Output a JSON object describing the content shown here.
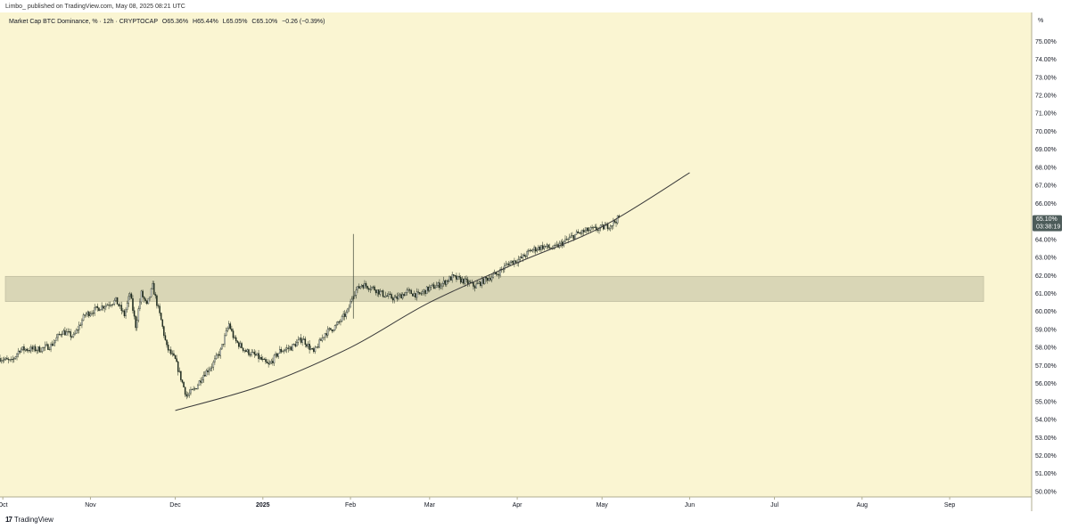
{
  "publisher_line": "Limbo_ published on TradingView.com, May 08, 2025 08:21 UTC",
  "footer": {
    "logo_glyph": "17",
    "brand": "TradingView"
  },
  "colors": {
    "plot_bg": "#faf5d2",
    "zone_fill": "#d9d6b6",
    "zone_stroke": "#b9b69a",
    "candle_up": "#ffffff",
    "candle_down": "#1f2b1f",
    "wick": "#1f2b1f",
    "trendline": "#3b3b3b",
    "last_price_bg": "#4d5c5a",
    "axis_line": "#b0ad90"
  },
  "chart_data": {
    "type": "candlestick",
    "title": "Market Cap BTC Dominance, % · 12h · CRYPTOCAP",
    "ohlc_legend": {
      "open_label": "O",
      "open": "65.36%",
      "high_label": "H",
      "high": "65.44%",
      "low_label": "L",
      "low": "65.05%",
      "close_label": "C",
      "close": "65.10%",
      "change": "−0.26 (−0.39%)"
    },
    "y_axis": {
      "unit_label": "%",
      "min": 49.7,
      "max": 76.6,
      "ticks": [
        "75.00%",
        "74.00%",
        "73.00%",
        "72.00%",
        "71.00%",
        "70.00%",
        "69.00%",
        "68.00%",
        "67.00%",
        "66.00%",
        "64.00%",
        "63.00%",
        "62.00%",
        "61.00%",
        "60.00%",
        "59.00%",
        "58.00%",
        "57.00%",
        "56.00%",
        "55.00%",
        "54.00%",
        "53.00%",
        "52.00%",
        "51.00%",
        "50.00%"
      ],
      "tick_values": [
        75,
        74,
        73,
        72,
        71,
        70,
        69,
        68,
        67,
        66,
        64,
        63,
        62,
        61,
        60,
        59,
        58,
        57,
        56,
        55,
        54,
        53,
        52,
        51,
        50
      ]
    },
    "x_axis": {
      "start": "2024-09-30",
      "end": "2025-09-30",
      "labels": [
        {
          "text": "Oct",
          "date": "2024-10-01"
        },
        {
          "text": "Nov",
          "date": "2024-11-01"
        },
        {
          "text": "Dec",
          "date": "2024-12-01"
        },
        {
          "text": "2025",
          "date": "2025-01-01"
        },
        {
          "text": "Feb",
          "date": "2025-02-01"
        },
        {
          "text": "Mar",
          "date": "2025-03-01"
        },
        {
          "text": "Apr",
          "date": "2025-04-01"
        },
        {
          "text": "May",
          "date": "2025-05-01"
        },
        {
          "text": "Jun",
          "date": "2025-06-01"
        },
        {
          "text": "Jul",
          "date": "2025-07-01"
        },
        {
          "text": "Aug",
          "date": "2025-08-01"
        },
        {
          "text": "Sep",
          "date": "2025-09-01"
        }
      ]
    },
    "last_price": {
      "value": 65.1,
      "label": "65.10%",
      "countdown": "03:38:19"
    },
    "zone": {
      "low": 60.55,
      "high": 61.95,
      "from": "2024-09-30",
      "to": "2025-09-13"
    },
    "trendline": [
      {
        "date": "2024-12-01",
        "value": 54.5
      },
      {
        "date": "2025-01-01",
        "value": 55.9
      },
      {
        "date": "2025-02-01",
        "value": 58.0
      },
      {
        "date": "2025-03-01",
        "value": 60.5
      },
      {
        "date": "2025-04-01",
        "value": 62.7
      },
      {
        "date": "2025-05-01",
        "value": 64.7
      },
      {
        "date": "2025-06-01",
        "value": 67.7
      }
    ],
    "price_path": [
      {
        "date": "2024-09-30",
        "value": 57.4
      },
      {
        "date": "2024-10-04",
        "value": 57.2
      },
      {
        "date": "2024-10-07",
        "value": 57.9
      },
      {
        "date": "2024-10-14",
        "value": 57.9
      },
      {
        "date": "2024-10-18",
        "value": 58.1
      },
      {
        "date": "2024-10-22",
        "value": 58.9
      },
      {
        "date": "2024-10-26",
        "value": 58.6
      },
      {
        "date": "2024-10-30",
        "value": 59.8
      },
      {
        "date": "2024-11-04",
        "value": 60.2
      },
      {
        "date": "2024-11-10",
        "value": 60.6
      },
      {
        "date": "2024-11-13",
        "value": 59.8
      },
      {
        "date": "2024-11-15",
        "value": 61.0
      },
      {
        "date": "2024-11-17",
        "value": 59.2
      },
      {
        "date": "2024-11-19",
        "value": 61.0
      },
      {
        "date": "2024-11-21",
        "value": 60.3
      },
      {
        "date": "2024-11-23",
        "value": 61.4
      },
      {
        "date": "2024-11-26",
        "value": 59.5
      },
      {
        "date": "2024-11-28",
        "value": 58.0
      },
      {
        "date": "2024-12-01",
        "value": 57.3
      },
      {
        "date": "2024-12-05",
        "value": 55.3
      },
      {
        "date": "2024-12-08",
        "value": 55.7
      },
      {
        "date": "2024-12-11",
        "value": 56.5
      },
      {
        "date": "2024-12-14",
        "value": 57.0
      },
      {
        "date": "2024-12-17",
        "value": 57.8
      },
      {
        "date": "2024-12-20",
        "value": 59.3
      },
      {
        "date": "2024-12-22",
        "value": 58.4
      },
      {
        "date": "2024-12-26",
        "value": 57.8
      },
      {
        "date": "2024-12-30",
        "value": 57.5
      },
      {
        "date": "2025-01-03",
        "value": 57.0
      },
      {
        "date": "2025-01-07",
        "value": 57.8
      },
      {
        "date": "2025-01-11",
        "value": 58.0
      },
      {
        "date": "2025-01-15",
        "value": 58.5
      },
      {
        "date": "2025-01-19",
        "value": 57.7
      },
      {
        "date": "2025-01-23",
        "value": 58.8
      },
      {
        "date": "2025-01-27",
        "value": 59.2
      },
      {
        "date": "2025-01-31",
        "value": 60.0
      },
      {
        "date": "2025-02-02",
        "value": 61.0
      },
      {
        "date": "2025-02-05",
        "value": 61.5
      },
      {
        "date": "2025-02-09",
        "value": 61.3
      },
      {
        "date": "2025-02-13",
        "value": 60.9
      },
      {
        "date": "2025-02-17",
        "value": 60.7
      },
      {
        "date": "2025-02-21",
        "value": 61.1
      },
      {
        "date": "2025-02-25",
        "value": 60.9
      },
      {
        "date": "2025-03-01",
        "value": 61.3
      },
      {
        "date": "2025-03-05",
        "value": 61.5
      },
      {
        "date": "2025-03-09",
        "value": 61.9
      },
      {
        "date": "2025-03-13",
        "value": 61.7
      },
      {
        "date": "2025-03-17",
        "value": 61.4
      },
      {
        "date": "2025-03-21",
        "value": 61.8
      },
      {
        "date": "2025-03-25",
        "value": 62.1
      },
      {
        "date": "2025-03-29",
        "value": 62.7
      },
      {
        "date": "2025-04-02",
        "value": 62.9
      },
      {
        "date": "2025-04-06",
        "value": 63.4
      },
      {
        "date": "2025-04-10",
        "value": 63.6
      },
      {
        "date": "2025-04-14",
        "value": 63.5
      },
      {
        "date": "2025-04-18",
        "value": 63.9
      },
      {
        "date": "2025-04-22",
        "value": 64.3
      },
      {
        "date": "2025-04-26",
        "value": 64.5
      },
      {
        "date": "2025-04-30",
        "value": 64.6
      },
      {
        "date": "2025-05-04",
        "value": 64.8
      },
      {
        "date": "2025-05-07",
        "value": 65.2
      }
    ],
    "spikes": [
      {
        "date": "2025-02-02",
        "high": 64.3,
        "low": 59.6
      }
    ]
  }
}
